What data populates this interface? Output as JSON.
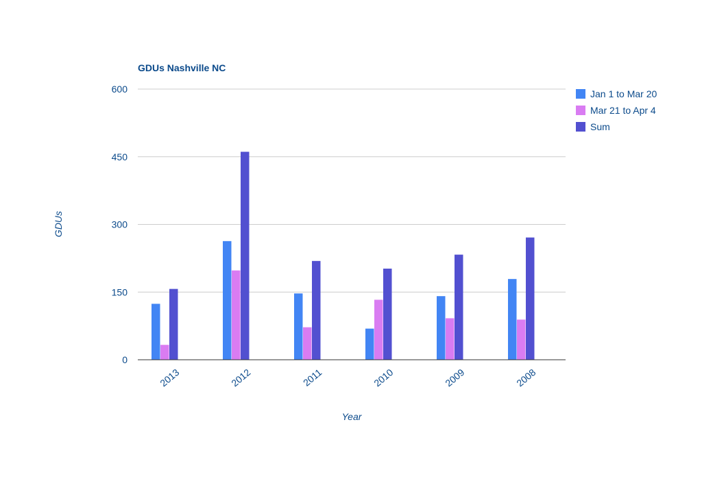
{
  "chart_data": {
    "type": "bar",
    "title": "GDUs Nashville NC",
    "xlabel": "Year",
    "ylabel": "GDUs",
    "categories": [
      "2013",
      "2012",
      "2011",
      "2010",
      "2009",
      "2008"
    ],
    "series": [
      {
        "name": "Jan 1 to Mar 20",
        "color": "#4285f4",
        "values": [
          124,
          263,
          147,
          69,
          141,
          179
        ]
      },
      {
        "name": "Mar 21 to Apr 4",
        "color": "#d97cf2",
        "values": [
          33,
          198,
          72,
          133,
          92,
          89
        ]
      },
      {
        "name": "Sum",
        "color": "#5250d0",
        "values": [
          157,
          461,
          219,
          202,
          233,
          271
        ]
      }
    ],
    "ylim": [
      0,
      600
    ],
    "yticks": [
      "0",
      "150",
      "300",
      "450",
      "600"
    ],
    "grid": true,
    "legend_position": "right"
  }
}
